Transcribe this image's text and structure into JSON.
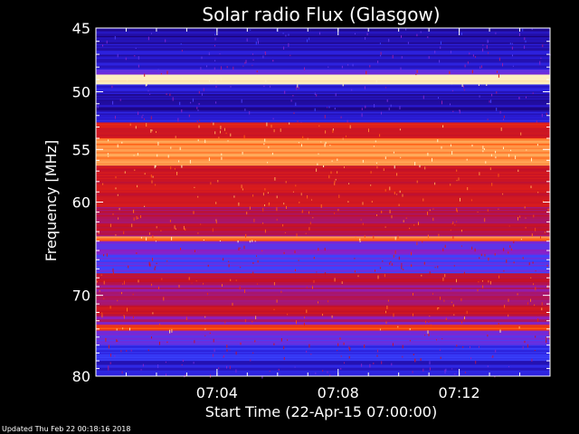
{
  "chart_data": {
    "type": "heatmap",
    "title": "Solar radio Flux (Glasgow)",
    "ylabel": "Frequency [MHz]",
    "xlabel": "Start Time (22-Apr-15 07:00:00)",
    "ylim": [
      45,
      80
    ],
    "y_scale": "log",
    "y_ticks": [
      45,
      50,
      55,
      60,
      70,
      80
    ],
    "y_tick_labels": [
      "45",
      "50",
      "55",
      "60",
      "70",
      "80"
    ],
    "xlim": [
      "07:00",
      "07:15"
    ],
    "x_ticks": [
      "07:04",
      "07:08",
      "07:12"
    ],
    "grid": false,
    "colormap": [
      "#1a0070",
      "#2a1cd8",
      "#3b44ff",
      "#8a20c8",
      "#c0102a",
      "#e02018",
      "#ff5a10",
      "#ffb060",
      "#fff0c0"
    ],
    "bands": [
      {
        "f_start": 45.0,
        "f_end": 46.2,
        "intensity": 0.05
      },
      {
        "f_start": 46.2,
        "f_end": 48.2,
        "intensity": 0.1
      },
      {
        "f_start": 48.2,
        "f_end": 48.6,
        "intensity": 0.35
      },
      {
        "f_start": 48.6,
        "f_end": 49.4,
        "intensity": 1.0
      },
      {
        "f_start": 49.4,
        "f_end": 50.2,
        "intensity": 0.12
      },
      {
        "f_start": 50.2,
        "f_end": 51.6,
        "intensity": 0.07
      },
      {
        "f_start": 51.6,
        "f_end": 52.6,
        "intensity": 0.14
      },
      {
        "f_start": 52.6,
        "f_end": 53.2,
        "intensity": 0.6
      },
      {
        "f_start": 53.2,
        "f_end": 54.0,
        "intensity": 0.55
      },
      {
        "f_start": 54.0,
        "f_end": 56.5,
        "intensity": 0.82
      },
      {
        "f_start": 56.5,
        "f_end": 60.5,
        "intensity": 0.55
      },
      {
        "f_start": 60.5,
        "f_end": 63.5,
        "intensity": 0.48
      },
      {
        "f_start": 63.5,
        "f_end": 64.0,
        "intensity": 0.8
      },
      {
        "f_start": 64.0,
        "f_end": 65.5,
        "intensity": 0.35
      },
      {
        "f_start": 65.5,
        "f_end": 67.5,
        "intensity": 0.28
      },
      {
        "f_start": 67.5,
        "f_end": 68.5,
        "intensity": 0.5
      },
      {
        "f_start": 68.5,
        "f_end": 71.2,
        "intensity": 0.45
      },
      {
        "f_start": 71.2,
        "f_end": 72.5,
        "intensity": 0.52
      },
      {
        "f_start": 72.5,
        "f_end": 73.5,
        "intensity": 0.4
      },
      {
        "f_start": 73.5,
        "f_end": 74.2,
        "intensity": 0.7
      },
      {
        "f_start": 74.2,
        "f_end": 76.0,
        "intensity": 0.3
      },
      {
        "f_start": 76.0,
        "f_end": 78.0,
        "intensity": 0.18
      },
      {
        "f_start": 78.0,
        "f_end": 80.0,
        "intensity": 0.12
      }
    ],
    "footer": "Updated Thu Feb 22 00:18:16 2018"
  }
}
